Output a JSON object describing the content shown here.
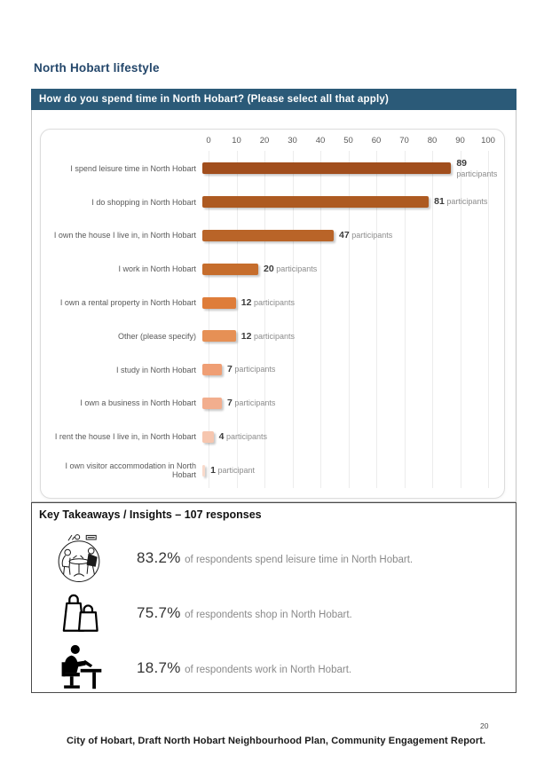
{
  "page": {
    "title": "North Hobart lifestyle",
    "footer": "City of Hobart, Draft North Hobart Neighbourhood Plan, Community Engagement Report.",
    "page_number": "20"
  },
  "question_bar": {
    "text": "How do you spend time in North Hobart? (Please select all that apply)"
  },
  "chart_data": {
    "type": "bar",
    "orientation": "horizontal",
    "title": "",
    "xlabel": "",
    "ylabel": "",
    "xlim": [
      0,
      100
    ],
    "axis_ticks": [
      0,
      10,
      20,
      30,
      40,
      50,
      60,
      70,
      80,
      90,
      100
    ],
    "grid": true,
    "categories": [
      "I spend leisure time in North Hobart",
      "I do shopping in North Hobart",
      "I own the house I live in, in North Hobart",
      "I work in North Hobart",
      "I own a rental property in North Hobart",
      "Other (please specify)",
      "I study in North Hobart",
      "I own a business in North Hobart",
      "I rent the house I live in, in North Hobart",
      "I own visitor accommodation in North Hobart"
    ],
    "values": [
      89,
      81,
      47,
      20,
      12,
      12,
      7,
      7,
      4,
      1
    ],
    "unit_labels": [
      "participants",
      "participants",
      "participants",
      "participants",
      "participants",
      "participants",
      "participants",
      "participants",
      "participants",
      "participant"
    ],
    "bar_colors": [
      "#A14E1D",
      "#AD5A21",
      "#B96428",
      "#C66D2C",
      "#DE7D3A",
      "#E69055",
      "#EF9E74",
      "#F2AE8E",
      "#F6C6AF",
      "#F9DACB"
    ],
    "value_label_wrap_first_row": true
  },
  "takeaways": {
    "title": "Key Takeaways / Insights – 107 responses",
    "items": [
      {
        "icon": "leisure-people-table-icon",
        "pct": "83.2%",
        "text": "of respondents spend leisure time in North Hobart."
      },
      {
        "icon": "shopping-bags-icon",
        "pct": "75.7%",
        "text": "of respondents shop in North Hobart."
      },
      {
        "icon": "person-working-desk-icon",
        "pct": "18.7%",
        "text": "of respondents work in North Hobart."
      }
    ]
  },
  "colors": {
    "header_bar": "#2B5A78",
    "title_text": "#24476B",
    "gridline": "#ececec",
    "category_text": "#595959",
    "value_number": "#3b3b3b",
    "value_unit": "#8c8c8c"
  }
}
